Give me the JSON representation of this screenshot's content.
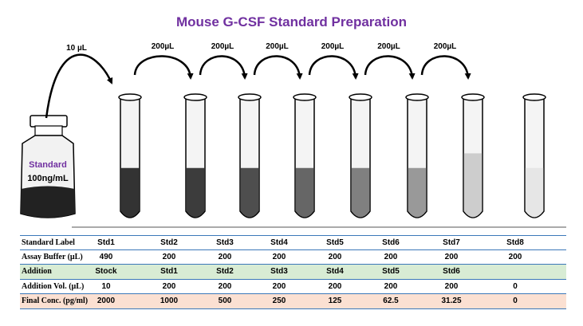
{
  "title": "Mouse G-CSF Standard Preparation",
  "colors": {
    "title": "#7030a0",
    "stock_label": "#7030a0",
    "table_line": "#3b78b9",
    "row_addition_bg": "#d8ecd4",
    "row_final_bg": "#fbe0d2",
    "tube_fills": [
      "#333333",
      "#3c3c3c",
      "#4e4e4e",
      "#666666",
      "#808080",
      "#999999",
      "#cdcdcd",
      "#e6e6e6"
    ]
  },
  "stock": {
    "label": "Standard",
    "concentration": "100ng/mL"
  },
  "transfers": {
    "first": "10 µL",
    "serial": [
      "200µL",
      "200µL",
      "200µL",
      "200µL",
      "200µL",
      "200µL"
    ]
  },
  "tubes": [
    {
      "fill_level": 0.42
    },
    {
      "fill_level": 0.42
    },
    {
      "fill_level": 0.42
    },
    {
      "fill_level": 0.42
    },
    {
      "fill_level": 0.42
    },
    {
      "fill_level": 0.42
    },
    {
      "fill_level": 0.54
    },
    {
      "fill_level": 0.42
    }
  ],
  "table": {
    "rows": [
      {
        "label": "Standard Label",
        "bg": "",
        "cells": [
          "Std1",
          "Std2",
          "Std3",
          "Std4",
          "Std5",
          "Std6",
          "Std7",
          "Std8"
        ]
      },
      {
        "label": "Assay Buffer (µL)",
        "bg": "",
        "cells": [
          "490",
          "200",
          "200",
          "200",
          "200",
          "200",
          "200",
          "200"
        ]
      },
      {
        "label": "Addition",
        "bg": "green",
        "cells": [
          "Stock",
          "Std1",
          "Std2",
          "Std3",
          "Std4",
          "Std5",
          "Std6",
          ""
        ]
      },
      {
        "label": "Addition Vol. (µL)",
        "bg": "",
        "cells": [
          "10",
          "200",
          "200",
          "200",
          "200",
          "200",
          "200",
          "0"
        ]
      },
      {
        "label": "Final Conc. (pg/ml)",
        "bg": "peach",
        "cells": [
          "2000",
          "1000",
          "500",
          "250",
          "125",
          "62.5",
          "31.25",
          "0"
        ]
      }
    ]
  }
}
